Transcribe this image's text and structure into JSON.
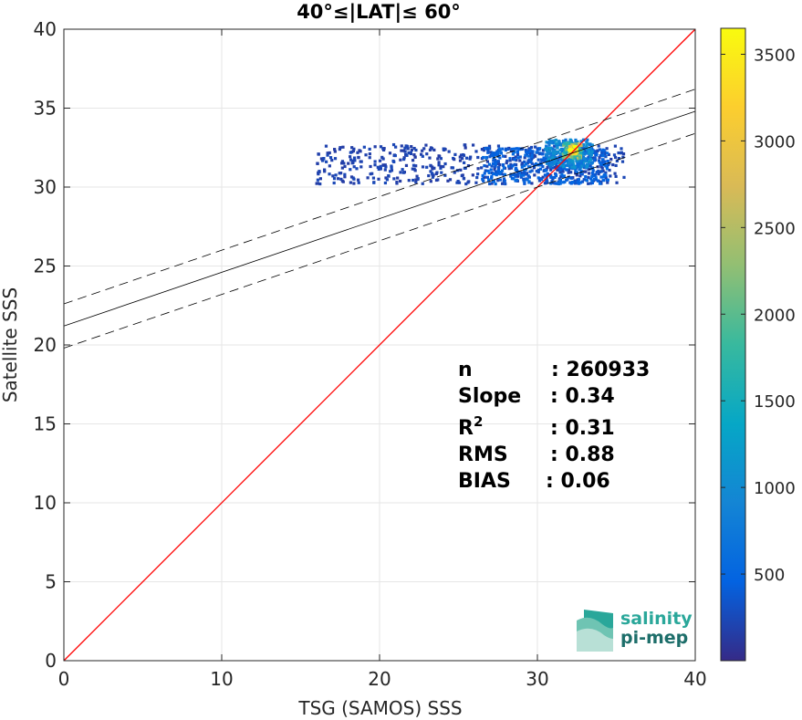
{
  "chart_data": {
    "type": "heatmap",
    "title": "40°≤|LAT|≤ 60°",
    "xlabel": "TSG (SAMOS) SSS",
    "ylabel": "Satellite SSS",
    "xlim": [
      0,
      40
    ],
    "ylim": [
      0,
      40
    ],
    "xticks": [
      "0",
      "10",
      "20",
      "30",
      "40"
    ],
    "yticks": [
      "0",
      "5",
      "10",
      "15",
      "20",
      "25",
      "30",
      "35",
      "40"
    ],
    "grid": true,
    "colorbar": {
      "ticks": [
        "500",
        "1000",
        "1500",
        "2000",
        "2500",
        "3000",
        "3500"
      ],
      "tick_values": [
        500,
        1000,
        1500,
        2000,
        2500,
        3000,
        3500
      ],
      "range": [
        0,
        3650
      ],
      "colormap": "parula",
      "colors": [
        "#352a87",
        "#0363e1",
        "#1485d4",
        "#06a7c6",
        "#38b99e",
        "#92bf73",
        "#d9ba56",
        "#fcce2e",
        "#f9fb0e"
      ]
    },
    "identity_line": {
      "color": "#ff0000",
      "x": [
        0,
        40
      ],
      "y": [
        0,
        40
      ]
    },
    "fit_line": {
      "slope": 0.34,
      "intercept": 21.2,
      "color": "#000000"
    },
    "fit_band_offset": 1.4,
    "density_regions": [
      {
        "x": [
          16.0,
          35.5
        ],
        "y": [
          30.2,
          32.7
        ],
        "level": 200
      },
      {
        "x": [
          26.5,
          34.5
        ],
        "y": [
          30.2,
          32.5
        ],
        "level": 450
      },
      {
        "x": [
          30.5,
          33.5
        ],
        "y": [
          31.2,
          33.0
        ],
        "level": 900
      },
      {
        "x": [
          31.6,
          32.8
        ],
        "y": [
          31.8,
          32.8
        ],
        "level": 2100
      },
      {
        "x": [
          32.0,
          32.5
        ],
        "y": [
          32.1,
          32.6
        ],
        "level": 3400
      }
    ],
    "stats": [
      {
        "label": "n",
        "value": ": 260933"
      },
      {
        "label": "Slope",
        "value": ": 0.34"
      },
      {
        "label": "R",
        "sup": "2",
        "value": ": 0.31"
      },
      {
        "label": "RMS",
        "value": ": 0.88"
      },
      {
        "label": "BIAS",
        "value": ": 0.06"
      }
    ]
  },
  "logo": {
    "line1": "salinity",
    "line2": "pi-mep",
    "color1": "#2aa79a",
    "color2": "#1d6e6a"
  }
}
